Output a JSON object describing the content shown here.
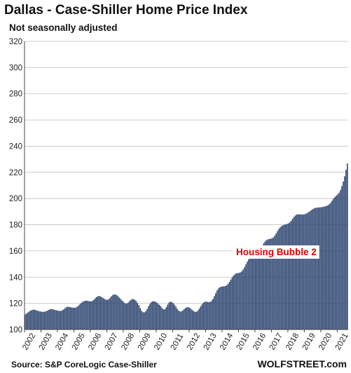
{
  "chart_data": {
    "type": "bar",
    "title": "Dallas - Case-Shiller Home Price Index",
    "subtitle": "Not seasonally adjusted",
    "source": "Source: S&P CoreLogic Case-Shiller",
    "brand": "WOLFSTREET.com",
    "annotation": "Housing Bubble 2",
    "ylim": [
      100,
      320
    ],
    "yticks": [
      100,
      120,
      140,
      160,
      180,
      200,
      220,
      240,
      260,
      280,
      300,
      320
    ],
    "xticks": [
      "2002",
      "2003",
      "2004",
      "2005",
      "2006",
      "2007",
      "2008",
      "2009",
      "2010",
      "2011",
      "2012",
      "2013",
      "2014",
      "2015",
      "2016",
      "2017",
      "2018",
      "2019",
      "2020",
      "2021"
    ],
    "grid": true,
    "bar_color": "#27406c",
    "years": [
      {
        "year": "2002",
        "values": [
          111.5,
          112.2,
          113.0,
          113.8,
          114.4,
          114.9,
          115.2,
          115.1,
          114.8,
          114.4,
          114.1,
          113.9
        ]
      },
      {
        "year": "2003",
        "values": [
          113.6,
          113.5,
          113.6,
          113.9,
          114.3,
          114.9,
          115.4,
          115.6,
          115.5,
          115.2,
          114.9,
          114.7
        ]
      },
      {
        "year": "2004",
        "values": [
          114.4,
          114.2,
          114.2,
          114.6,
          115.3,
          116.2,
          117.0,
          117.4,
          117.3,
          117.1,
          116.8,
          116.7
        ]
      },
      {
        "year": "2005",
        "values": [
          116.6,
          116.8,
          117.4,
          118.3,
          119.3,
          120.3,
          121.1,
          121.7,
          122.0,
          122.0,
          121.8,
          121.6
        ]
      },
      {
        "year": "2006",
        "values": [
          121.5,
          121.8,
          122.6,
          123.7,
          124.7,
          125.4,
          125.6,
          125.3,
          124.7,
          124.0,
          123.3,
          122.8
        ]
      },
      {
        "year": "2007",
        "values": [
          122.7,
          123.2,
          124.2,
          125.4,
          126.4,
          126.8,
          126.7,
          126.1,
          125.2,
          124.1,
          122.9,
          121.9
        ]
      },
      {
        "year": "2008",
        "values": [
          120.8,
          120.0,
          119.8,
          120.4,
          121.5,
          122.5,
          123.2,
          123.2,
          122.7,
          121.8,
          120.3,
          118.6
        ]
      },
      {
        "year": "2009",
        "values": [
          116.4,
          114.3,
          113.2,
          113.1,
          114.0,
          115.6,
          117.7,
          119.6,
          120.9,
          121.5,
          121.6,
          121.3
        ]
      },
      {
        "year": "2010",
        "values": [
          120.6,
          119.7,
          118.8,
          117.7,
          116.3,
          115.3,
          115.6,
          117.1,
          119.1,
          120.6,
          121.2,
          121.0
        ]
      },
      {
        "year": "2011",
        "values": [
          120.2,
          119.0,
          117.5,
          115.8,
          114.4,
          113.8,
          113.9,
          114.6,
          115.6,
          116.5,
          117.0,
          117.1
        ]
      },
      {
        "year": "2012",
        "values": [
          116.6,
          115.8,
          114.9,
          114.0,
          113.5,
          113.6,
          114.4,
          115.9,
          117.6,
          119.2,
          120.4,
          121.1
        ]
      },
      {
        "year": "2013",
        "values": [
          121.3,
          121.1,
          120.9,
          121.1,
          121.9,
          123.4,
          125.5,
          127.8,
          129.9,
          131.4,
          132.3,
          132.7
        ]
      },
      {
        "year": "2014",
        "values": [
          132.9,
          133.0,
          133.2,
          133.8,
          134.9,
          136.4,
          138.1,
          139.8,
          141.2,
          142.2,
          142.8,
          143.1
        ]
      },
      {
        "year": "2015",
        "values": [
          143.3,
          143.6,
          144.4,
          145.8,
          147.6,
          149.7,
          151.8,
          153.6,
          155.1,
          156.1,
          156.7,
          157.0
        ]
      },
      {
        "year": "2016",
        "values": [
          157.3,
          157.9,
          158.9,
          160.3,
          162.1,
          164.0,
          165.8,
          167.2,
          168.2,
          168.8,
          169.1,
          169.3
        ]
      },
      {
        "year": "2017",
        "values": [
          169.6,
          170.3,
          171.6,
          173.3,
          175.1,
          176.8,
          178.1,
          179.0,
          179.6,
          180.0,
          180.3,
          180.6
        ]
      },
      {
        "year": "2018",
        "values": [
          181.0,
          181.8,
          183.0,
          184.5,
          185.9,
          187.0,
          187.7,
          188.0,
          188.0,
          187.9,
          187.8,
          187.9
        ]
      },
      {
        "year": "2019",
        "values": [
          188.1,
          188.5,
          189.1,
          189.8,
          190.6,
          191.4,
          192.1,
          192.6,
          192.9,
          193.1,
          193.2,
          193.3
        ]
      },
      {
        "year": "2020",
        "values": [
          193.4,
          193.6,
          193.8,
          194.1,
          194.5,
          195.0,
          195.8,
          197.0,
          198.5,
          200.0,
          201.3,
          202.3
        ]
      },
      {
        "year": "2021",
        "values": [
          203.2,
          204.5,
          206.6,
          209.5,
          213.0,
          217.0,
          222.0,
          226.7
        ]
      }
    ]
  }
}
